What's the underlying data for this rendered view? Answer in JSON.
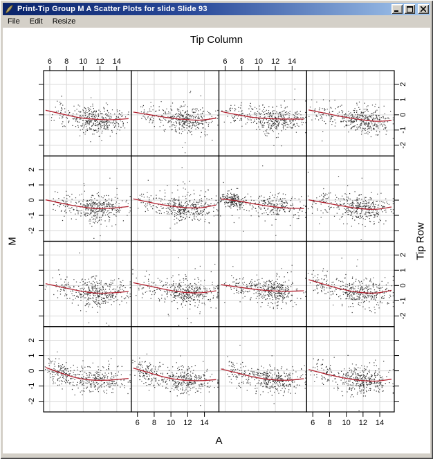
{
  "window": {
    "title": "Print-Tip Group M A Scatter Plots for slide Slide 93",
    "icon": "feather-quill",
    "titlebar_gradient": [
      "#0a246a",
      "#a6caf0"
    ],
    "chrome_color": "#d4d0c8"
  },
  "menu": {
    "items": [
      {
        "label": "File"
      },
      {
        "label": "Edit"
      },
      {
        "label": "Resize"
      }
    ]
  },
  "chart_data": {
    "type": "scatter",
    "layout": "4x4-trellis",
    "top_label": "Tip Column",
    "right_label": "Tip Row",
    "xlabel": "A",
    "ylabel": "M",
    "x_ticks": [
      6,
      8,
      10,
      12,
      14
    ],
    "y_ticks": [
      -2,
      -1,
      0,
      1,
      2
    ],
    "xlim": [
      5.26,
      15.73
    ],
    "ylim": [
      -2.7,
      2.9
    ],
    "grid": true,
    "x_label_columns_top": [
      1,
      3
    ],
    "x_label_columns_bottom": [
      2,
      4
    ],
    "y_label_rows_left": [
      2,
      4
    ],
    "y_label_rows_right": [
      1,
      3
    ],
    "point_color": "#1a1a1a",
    "smooth_color": "#b22230",
    "grid_color": "#d9d9d9",
    "panel_border_color": "#000000",
    "panels": [
      {
        "tip_row": 1,
        "tip_column": 1,
        "seed": 101,
        "n": 410,
        "cloud": {
          "mu": 11.7,
          "sd": 1.7,
          "left_frac": 0.08,
          "left_mu": 7.4,
          "left_sd": 0.8,
          "y_sd": 0.43,
          "left_y_sd": 0.4
        },
        "curve": [
          [
            5.5,
            0.3
          ],
          [
            7.5,
            0.05
          ],
          [
            9.5,
            -0.18
          ],
          [
            11.5,
            -0.3
          ],
          [
            13.5,
            -0.32
          ],
          [
            15.4,
            -0.25
          ]
        ]
      },
      {
        "tip_row": 1,
        "tip_column": 2,
        "seed": 102,
        "n": 400,
        "cloud": {
          "mu": 11.6,
          "sd": 1.7,
          "left_frac": 0.1,
          "left_mu": 7.3,
          "left_sd": 0.8,
          "y_sd": 0.42,
          "left_y_sd": 0.38
        },
        "curve": [
          [
            5.5,
            0.18
          ],
          [
            7.5,
            0.0
          ],
          [
            9.5,
            -0.18
          ],
          [
            11.5,
            -0.3
          ],
          [
            13.5,
            -0.35
          ],
          [
            15.4,
            -0.22
          ]
        ]
      },
      {
        "tip_row": 1,
        "tip_column": 3,
        "seed": 103,
        "n": 420,
        "cloud": {
          "mu": 11.9,
          "sd": 1.7,
          "left_frac": 0.12,
          "left_mu": 7.4,
          "left_sd": 0.8,
          "y_sd": 0.42,
          "left_y_sd": 0.38
        },
        "curve": [
          [
            5.5,
            0.22
          ],
          [
            7.5,
            0.0
          ],
          [
            9.5,
            -0.18
          ],
          [
            11.5,
            -0.26
          ],
          [
            13.5,
            -0.28
          ],
          [
            15.4,
            -0.28
          ]
        ]
      },
      {
        "tip_row": 1,
        "tip_column": 4,
        "seed": 104,
        "n": 410,
        "cloud": {
          "mu": 11.9,
          "sd": 1.6,
          "left_frac": 0.14,
          "left_mu": 7.2,
          "left_sd": 0.8,
          "y_sd": 0.42,
          "left_y_sd": 0.38
        },
        "curve": [
          [
            5.5,
            0.32
          ],
          [
            7.5,
            0.1
          ],
          [
            9.5,
            -0.12
          ],
          [
            11.5,
            -0.3
          ],
          [
            13.5,
            -0.42
          ],
          [
            15.4,
            -0.38
          ]
        ]
      },
      {
        "tip_row": 2,
        "tip_column": 1,
        "seed": 105,
        "n": 400,
        "cloud": {
          "mu": 11.6,
          "sd": 1.7,
          "left_frac": 0.1,
          "left_mu": 7.3,
          "left_sd": 0.8,
          "y_sd": 0.43,
          "left_y_sd": 0.38
        },
        "curve": [
          [
            5.5,
            0.02
          ],
          [
            7.5,
            -0.22
          ],
          [
            9.5,
            -0.42
          ],
          [
            11.5,
            -0.55
          ],
          [
            13.5,
            -0.52
          ],
          [
            15.4,
            -0.42
          ]
        ]
      },
      {
        "tip_row": 2,
        "tip_column": 2,
        "seed": 106,
        "n": 400,
        "cloud": {
          "mu": 11.7,
          "sd": 1.7,
          "left_frac": 0.12,
          "left_mu": 7.2,
          "left_sd": 0.8,
          "y_sd": 0.43,
          "left_y_sd": 0.38
        },
        "curve": [
          [
            5.5,
            0.08
          ],
          [
            7.5,
            -0.15
          ],
          [
            9.5,
            -0.35
          ],
          [
            11.5,
            -0.48
          ],
          [
            13.5,
            -0.5
          ],
          [
            15.4,
            -0.32
          ]
        ]
      },
      {
        "tip_row": 2,
        "tip_column": 3,
        "seed": 107,
        "n": 430,
        "cloud": {
          "mu": 11.9,
          "sd": 1.8,
          "left_frac": 0.45,
          "left_mu": 7.0,
          "left_sd": 0.8,
          "y_sd": 0.42,
          "left_y_sd": 0.25
        },
        "curve": [
          [
            5.5,
            0.08
          ],
          [
            7.5,
            -0.05
          ],
          [
            9.5,
            -0.25
          ],
          [
            11.5,
            -0.42
          ],
          [
            13.5,
            -0.52
          ],
          [
            15.4,
            -0.55
          ]
        ]
      },
      {
        "tip_row": 2,
        "tip_column": 4,
        "seed": 108,
        "n": 410,
        "cloud": {
          "mu": 11.8,
          "sd": 1.7,
          "left_frac": 0.12,
          "left_mu": 7.2,
          "left_sd": 0.8,
          "y_sd": 0.43,
          "left_y_sd": 0.38
        },
        "curve": [
          [
            5.5,
            0.02
          ],
          [
            7.5,
            -0.18
          ],
          [
            9.5,
            -0.38
          ],
          [
            11.5,
            -0.55
          ],
          [
            13.5,
            -0.6
          ],
          [
            15.4,
            -0.45
          ]
        ]
      },
      {
        "tip_row": 3,
        "tip_column": 1,
        "seed": 109,
        "n": 410,
        "cloud": {
          "mu": 11.6,
          "sd": 1.7,
          "left_frac": 0.1,
          "left_mu": 7.3,
          "left_sd": 0.8,
          "y_sd": 0.43,
          "left_y_sd": 0.38
        },
        "curve": [
          [
            5.5,
            0.12
          ],
          [
            7.5,
            -0.12
          ],
          [
            9.5,
            -0.35
          ],
          [
            11.5,
            -0.5
          ],
          [
            13.5,
            -0.48
          ],
          [
            15.4,
            -0.4
          ]
        ]
      },
      {
        "tip_row": 3,
        "tip_column": 2,
        "seed": 110,
        "n": 400,
        "cloud": {
          "mu": 11.8,
          "sd": 1.7,
          "left_frac": 0.12,
          "left_mu": 7.2,
          "left_sd": 0.8,
          "y_sd": 0.43,
          "left_y_sd": 0.38
        },
        "curve": [
          [
            5.5,
            0.18
          ],
          [
            7.5,
            -0.05
          ],
          [
            9.5,
            -0.28
          ],
          [
            11.5,
            -0.45
          ],
          [
            13.5,
            -0.48
          ],
          [
            15.4,
            -0.35
          ]
        ]
      },
      {
        "tip_row": 3,
        "tip_column": 3,
        "seed": 111,
        "n": 400,
        "cloud": {
          "mu": 11.6,
          "sd": 1.6,
          "left_frac": 0.1,
          "left_mu": 7.4,
          "left_sd": 0.8,
          "y_sd": 0.42,
          "left_y_sd": 0.38
        },
        "curve": [
          [
            5.5,
            0.05
          ],
          [
            7.5,
            -0.1
          ],
          [
            9.5,
            -0.25
          ],
          [
            11.5,
            -0.35
          ],
          [
            13.5,
            -0.38
          ],
          [
            15.4,
            -0.35
          ]
        ]
      },
      {
        "tip_row": 3,
        "tip_column": 4,
        "seed": 112,
        "n": 410,
        "cloud": {
          "mu": 11.8,
          "sd": 1.7,
          "left_frac": 0.15,
          "left_mu": 7.1,
          "left_sd": 0.8,
          "y_sd": 0.44,
          "left_y_sd": 0.4
        },
        "curve": [
          [
            5.5,
            0.38
          ],
          [
            7.5,
            0.05
          ],
          [
            9.5,
            -0.25
          ],
          [
            11.5,
            -0.45
          ],
          [
            13.5,
            -0.5
          ],
          [
            15.4,
            -0.32
          ]
        ]
      },
      {
        "tip_row": 4,
        "tip_column": 1,
        "seed": 113,
        "n": 420,
        "cloud": {
          "mu": 11.5,
          "sd": 1.8,
          "left_frac": 0.3,
          "left_mu": 7.2,
          "left_sd": 0.9,
          "y_sd": 0.43,
          "left_y_sd": 0.35
        },
        "curve": [
          [
            5.5,
            0.22
          ],
          [
            7.5,
            -0.18
          ],
          [
            9.5,
            -0.5
          ],
          [
            11.5,
            -0.62
          ],
          [
            13.5,
            -0.6
          ],
          [
            15.4,
            -0.5
          ]
        ]
      },
      {
        "tip_row": 4,
        "tip_column": 2,
        "seed": 114,
        "n": 410,
        "cloud": {
          "mu": 11.6,
          "sd": 1.8,
          "left_frac": 0.28,
          "left_mu": 7.0,
          "left_sd": 0.9,
          "y_sd": 0.43,
          "left_y_sd": 0.35
        },
        "curve": [
          [
            5.5,
            0.18
          ],
          [
            7.5,
            -0.15
          ],
          [
            9.5,
            -0.45
          ],
          [
            11.5,
            -0.62
          ],
          [
            13.5,
            -0.65
          ],
          [
            15.4,
            -0.58
          ]
        ]
      },
      {
        "tip_row": 4,
        "tip_column": 3,
        "seed": 115,
        "n": 400,
        "cloud": {
          "mu": 11.7,
          "sd": 1.7,
          "left_frac": 0.18,
          "left_mu": 7.1,
          "left_sd": 0.8,
          "y_sd": 0.43,
          "left_y_sd": 0.36
        },
        "curve": [
          [
            5.5,
            0.12
          ],
          [
            7.5,
            -0.15
          ],
          [
            9.5,
            -0.42
          ],
          [
            11.5,
            -0.58
          ],
          [
            13.5,
            -0.62
          ],
          [
            15.4,
            -0.52
          ]
        ]
      },
      {
        "tip_row": 4,
        "tip_column": 4,
        "seed": 116,
        "n": 410,
        "cloud": {
          "mu": 11.8,
          "sd": 1.7,
          "left_frac": 0.15,
          "left_mu": 7.2,
          "left_sd": 0.8,
          "y_sd": 0.43,
          "left_y_sd": 0.38
        },
        "curve": [
          [
            5.5,
            0.08
          ],
          [
            7.5,
            -0.2
          ],
          [
            9.5,
            -0.45
          ],
          [
            11.5,
            -0.62
          ],
          [
            13.5,
            -0.68
          ],
          [
            15.4,
            -0.55
          ]
        ]
      }
    ]
  }
}
